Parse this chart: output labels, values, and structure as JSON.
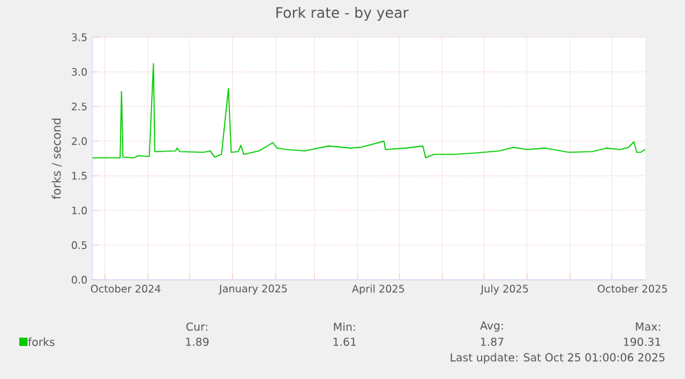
{
  "chart_data": {
    "type": "line",
    "title": "Fork rate - by year",
    "ylabel": "forks / second",
    "xlim": [
      "2024-09-22",
      "2025-10-25"
    ],
    "xticks": [
      {
        "value": "2024-10-01",
        "label": null
      },
      {
        "value": "2024-11-01",
        "label": null
      },
      {
        "value": "2024-12-01",
        "label": null
      },
      {
        "value": "2025-01-01",
        "label": null
      },
      {
        "value": "2025-02-01",
        "label": null
      },
      {
        "value": "2025-03-01",
        "label": null
      },
      {
        "value": "2025-04-01",
        "label": null
      },
      {
        "value": "2025-05-01",
        "label": null
      },
      {
        "value": "2025-06-01",
        "label": null
      },
      {
        "value": "2025-07-01",
        "label": null
      },
      {
        "value": "2025-08-01",
        "label": null
      },
      {
        "value": "2025-09-01",
        "label": null
      },
      {
        "value": "2025-10-01",
        "label": null
      },
      {
        "value": "2024-10-16",
        "label": "October 2024"
      },
      {
        "value": "2025-01-16",
        "label": "January 2025"
      },
      {
        "value": "2025-04-16",
        "label": "April 2025"
      },
      {
        "value": "2025-07-16",
        "label": "July 2025"
      },
      {
        "value": "2025-10-16",
        "label": "October 2025"
      }
    ],
    "ylim": [
      0,
      3.5
    ],
    "yticks": [
      {
        "value": 0,
        "label": "0.0"
      },
      {
        "value": 0.5,
        "label": "0.5"
      },
      {
        "value": 1,
        "label": "1.0"
      },
      {
        "value": 1.5,
        "label": "1.5"
      },
      {
        "value": 2,
        "label": "2.0"
      },
      {
        "value": 2.5,
        "label": "2.5"
      },
      {
        "value": 3,
        "label": "3.0"
      },
      {
        "value": 3.5,
        "label": "3.5"
      }
    ],
    "grid": true,
    "legend": "bottom",
    "marker": "none",
    "line_style": "solid",
    "x": [
      "2024-09-22",
      "2024-10-12",
      "2024-10-13",
      "2024-10-14",
      "2024-10-22",
      "2024-10-25",
      "2024-11-02",
      "2024-11-05",
      "2024-11-06",
      "2024-11-21",
      "2024-11-22",
      "2024-11-24",
      "2024-12-11",
      "2024-12-16",
      "2024-12-19",
      "2024-12-24",
      "2024-12-29",
      "2024-12-31",
      "2025-01-05",
      "2025-01-07",
      "2025-01-09",
      "2025-01-20",
      "2025-01-26",
      "2025-01-30",
      "2025-02-02",
      "2025-02-09",
      "2025-02-22",
      "2025-03-11",
      "2025-03-27",
      "2025-04-03",
      "2025-04-20",
      "2025-04-21",
      "2025-05-06",
      "2025-05-18",
      "2025-05-20",
      "2025-05-26",
      "2025-06-09",
      "2025-06-25",
      "2025-07-12",
      "2025-07-22",
      "2025-08-01",
      "2025-08-14",
      "2025-08-31",
      "2025-09-17",
      "2025-09-27",
      "2025-10-07",
      "2025-10-13",
      "2025-10-17",
      "2025-10-19",
      "2025-10-22",
      "2025-10-25"
    ],
    "series": [
      {
        "name": "forks",
        "color": "#00cc00",
        "values": [
          1.76,
          1.76,
          2.72,
          1.77,
          1.76,
          1.79,
          1.78,
          3.12,
          1.85,
          1.86,
          1.9,
          1.85,
          1.84,
          1.86,
          1.77,
          1.81,
          2.76,
          1.84,
          1.85,
          1.94,
          1.81,
          1.86,
          1.93,
          1.98,
          1.9,
          1.88,
          1.86,
          1.93,
          1.9,
          1.91,
          2.0,
          1.88,
          1.9,
          1.93,
          1.76,
          1.81,
          1.81,
          1.83,
          1.86,
          1.91,
          1.88,
          1.9,
          1.84,
          1.85,
          1.9,
          1.88,
          1.91,
          1.99,
          1.84,
          1.84,
          1.88
        ]
      }
    ],
    "annotations": [
      "Cur:",
      "Min:",
      "Avg:",
      "Max:",
      "1.89",
      "1.61",
      "1.87",
      "190.31",
      "Last update: Sat Oct 25 01:00:06 2025"
    ]
  }
}
